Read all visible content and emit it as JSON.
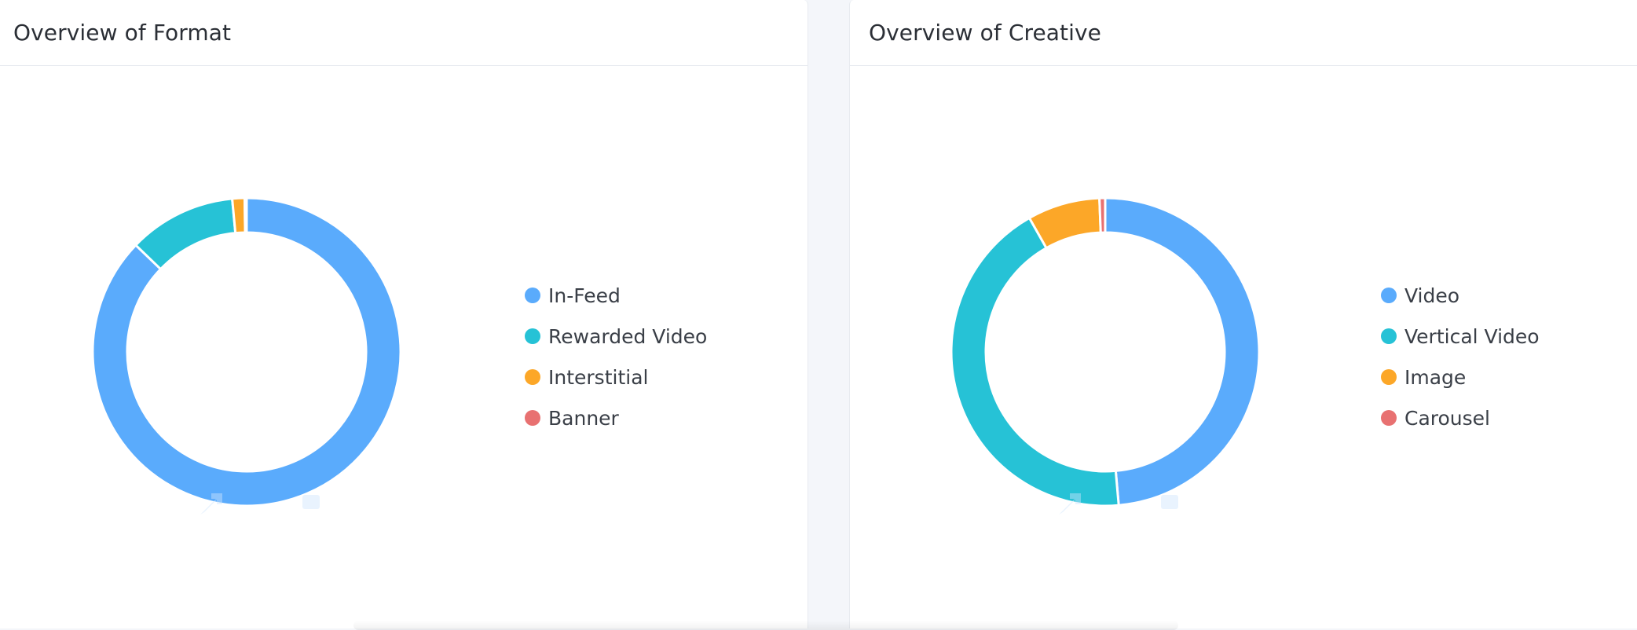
{
  "charts": [
    {
      "id": "format",
      "title": "Overview of Format"
    },
    {
      "id": "creative",
      "title": "Overview of Creative"
    }
  ],
  "chart_data": [
    {
      "type": "pie",
      "title": "Overview of Format",
      "donut": true,
      "legend_position": "right",
      "categories": [
        "In-Feed",
        "Rewarded Video",
        "Interstitial",
        "Banner"
      ],
      "values": [
        87.2,
        11.3,
        1.3,
        0.2
      ],
      "colors": [
        "#5aabfc",
        "#26c2d6",
        "#fca728",
        "#e87171"
      ]
    },
    {
      "type": "pie",
      "title": "Overview of Creative",
      "donut": true,
      "legend_position": "right",
      "categories": [
        "Video",
        "Vertical Video",
        "Image",
        "Carousel"
      ],
      "values": [
        48.6,
        43.2,
        7.6,
        0.6
      ],
      "colors": [
        "#5aabfc",
        "#26c2d6",
        "#fca728",
        "#e87171"
      ]
    }
  ]
}
